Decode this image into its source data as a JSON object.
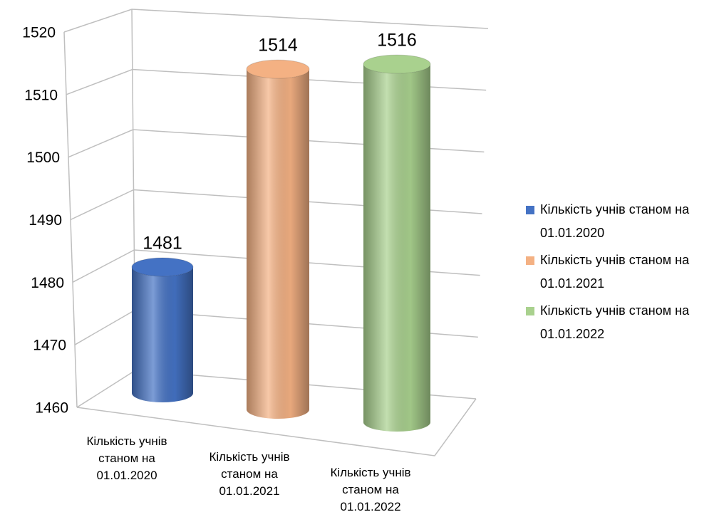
{
  "chart_data": {
    "type": "bar3d",
    "categories": [
      "Кількість учнів станом на 01.01.2020",
      "Кількість учнів станом на 01.01.2021",
      "Кількість учнів станом на 01.01.2022"
    ],
    "values": [
      1481,
      1514,
      1516
    ],
    "colors": [
      "#4472c4",
      "#f4b183",
      "#a9d18e"
    ],
    "ylim": [
      1460,
      1520
    ],
    "yticks": [
      1460,
      1470,
      1480,
      1490,
      1500,
      1510,
      1520
    ],
    "grid": true,
    "legend": "right"
  }
}
